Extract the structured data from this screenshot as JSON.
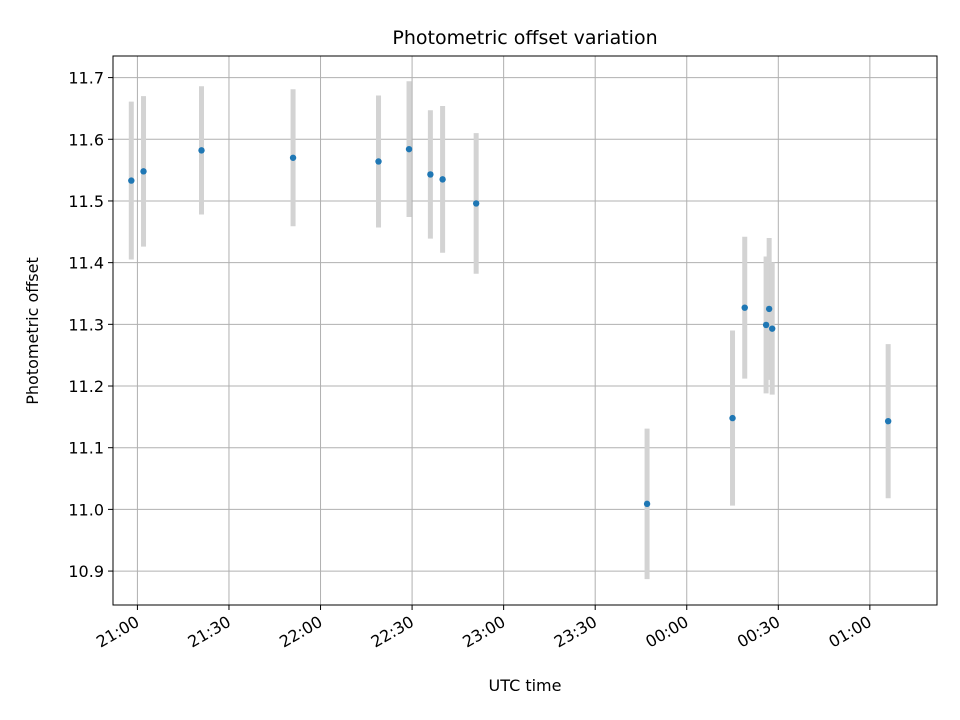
{
  "chart_data": {
    "type": "scatter",
    "title": "Photometric offset variation",
    "xlabel": "UTC time",
    "ylabel": "Photometric offset",
    "x_tick_labels": [
      "21:00",
      "21:30",
      "22:00",
      "22:30",
      "23:00",
      "23:30",
      "00:00",
      "00:30",
      "01:00"
    ],
    "y_tick_labels": [
      "10.9",
      "11.0",
      "11.1",
      "11.2",
      "11.3",
      "11.4",
      "11.5",
      "11.6",
      "11.7"
    ],
    "xlim": [
      "20:52",
      "01:22"
    ],
    "ylim": [
      10.845,
      11.735
    ],
    "grid": true,
    "colors": {
      "point": "#1f77b4",
      "errorbar": "#d3d3d3",
      "grid": "#b0b0b0"
    },
    "points": [
      {
        "time": "20:58",
        "offset": 11.533,
        "err": 0.128
      },
      {
        "time": "21:02",
        "offset": 11.548,
        "err": 0.122
      },
      {
        "time": "21:21",
        "offset": 11.582,
        "err": 0.104
      },
      {
        "time": "21:51",
        "offset": 11.57,
        "err": 0.111
      },
      {
        "time": "22:19",
        "offset": 11.564,
        "err": 0.107
      },
      {
        "time": "22:29",
        "offset": 11.584,
        "err": 0.11
      },
      {
        "time": "22:36",
        "offset": 11.543,
        "err": 0.104
      },
      {
        "time": "22:40",
        "offset": 11.535,
        "err": 0.119
      },
      {
        "time": "22:51",
        "offset": 11.496,
        "err": 0.114
      },
      {
        "time": "23:47",
        "offset": 11.009,
        "err": 0.122
      },
      {
        "time": "00:15",
        "offset": 11.148,
        "err": 0.142
      },
      {
        "time": "00:19",
        "offset": 11.327,
        "err": 0.115
      },
      {
        "time": "00:26",
        "offset": 11.299,
        "err": 0.111
      },
      {
        "time": "00:27",
        "offset": 11.325,
        "err": 0.115
      },
      {
        "time": "00:28",
        "offset": 11.293,
        "err": 0.107
      },
      {
        "time": "01:06",
        "offset": 11.143,
        "err": 0.125
      }
    ]
  }
}
